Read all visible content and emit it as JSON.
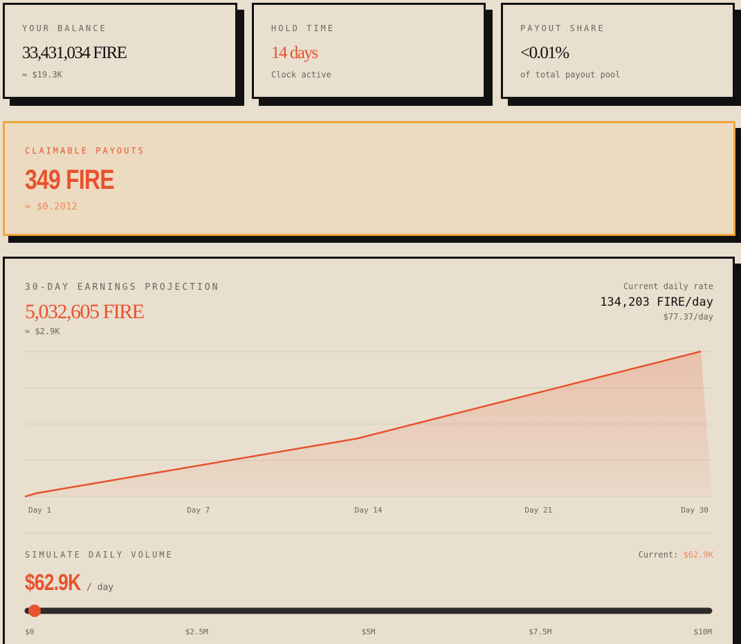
{
  "cards": [
    {
      "label": "YOUR BALANCE",
      "value": "33,431,034 FIRE",
      "sub": "≈ $19.3K"
    },
    {
      "label": "HOLD TIME",
      "value": "14 days",
      "sub": "Clock active"
    },
    {
      "label": "PAYOUT SHARE",
      "value": "<0.01%",
      "sub": "of total payout pool"
    }
  ],
  "claimable": {
    "label": "CLAIMABLE PAYOUTS",
    "value": "349 FIRE",
    "sub": "≈ $0.2012"
  },
  "projection": {
    "label": "30-DAY EARNINGS PROJECTION",
    "value": "5,032,605 FIRE",
    "sub": "≈ $2.9K",
    "rate_label": "Current daily rate",
    "rate": "134,203 FIRE/day",
    "rate_usd": "$77.37/day",
    "chart_data": {
      "type": "area",
      "x": [
        1,
        1.5,
        15.25,
        30
      ],
      "values": [
        0,
        120000,
        2000000,
        5000000
      ],
      "xlim": [
        1,
        30
      ],
      "ylim": [
        0,
        5000000
      ],
      "yticks": [
        0,
        1250000,
        2500000,
        3750000,
        5000000
      ],
      "grid": true,
      "color": "#e8522e",
      "x_labels": [
        "Day 1",
        "Day 7",
        "Day 14",
        "Day 21",
        "Day 30"
      ]
    }
  },
  "simulate": {
    "label": "SIMULATE DAILY VOLUME",
    "current_label": "Current:",
    "current": "$62.9K",
    "value": "$62.9K",
    "unit": "/ day",
    "slider": {
      "min": 0,
      "max": 10000000,
      "value": 62900,
      "ticks": [
        {
          "value": 0,
          "label": "$0"
        },
        {
          "value": 2500000,
          "label": "$2.5M"
        },
        {
          "value": 5000000,
          "label": "$5M"
        },
        {
          "value": 7500000,
          "label": "$7.5M"
        },
        {
          "value": 10000000,
          "label": "$10M"
        }
      ]
    }
  }
}
